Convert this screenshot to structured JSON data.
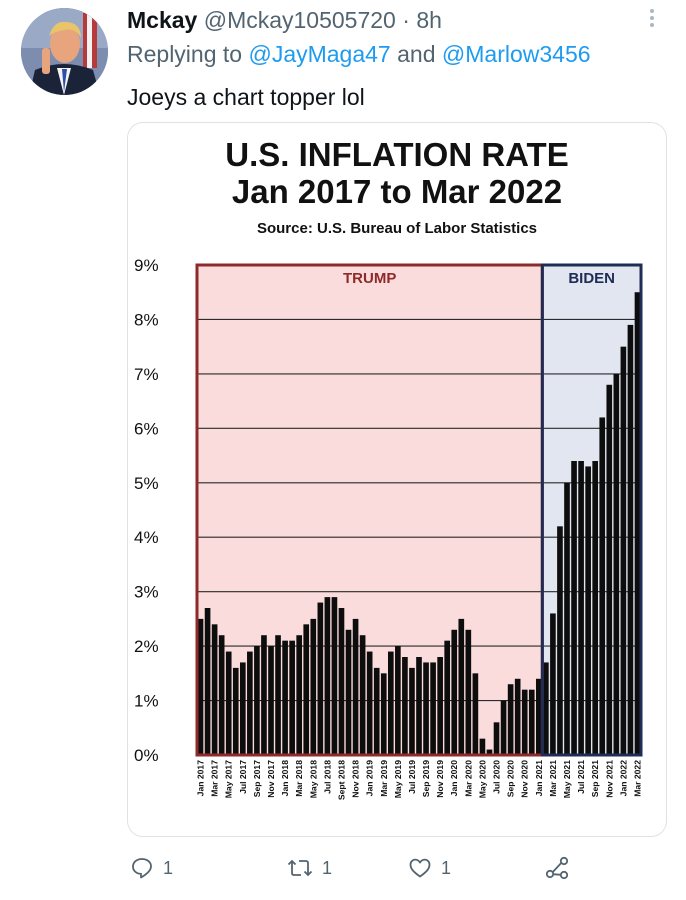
{
  "tweet": {
    "display_name": "Mckay",
    "handle": "@Mckay10505720",
    "separator": "·",
    "time": "8h",
    "reply_prefix": "Replying to",
    "mention_1": "@JayMaga47",
    "reply_and": "and",
    "mention_2": "@Marlow3456",
    "text": "Joeys a chart topper lol",
    "reply_count": "1",
    "retweet_count": "1",
    "like_count": "1",
    "colors": {
      "mention": "#1d9bf0",
      "secondary_text": "#536471"
    }
  },
  "chart_data": {
    "type": "bar",
    "title_line1": "U.S. INFLATION RATE",
    "title_line2": "Jan 2017 to Mar 2022",
    "subtitle": "Source: U.S. Bureau of Labor Statistics",
    "ylim": [
      0,
      9
    ],
    "yticks": [
      "0%",
      "1%",
      "2%",
      "3%",
      "4%",
      "5%",
      "6%",
      "7%",
      "8%",
      "9%"
    ],
    "x_tick_labels": [
      "Jan 2017",
      "Mar 2017",
      "May 2017",
      "Jul 2017",
      "Sep 2017",
      "Nov 2017",
      "Jan 2018",
      "Mar 2018",
      "May 2018",
      "Jul 2018",
      "Sept 2018",
      "Nov 2018",
      "Jan 2019",
      "Mar 2019",
      "May 2019",
      "Jul 2019",
      "Sep 2019",
      "Nov 2019",
      "Jan 2020",
      "Mar 2020",
      "May 2020",
      "Jul 2020",
      "Sep 2020",
      "Nov 2020",
      "Jan 2021",
      "Mar 2021",
      "May 2021",
      "Jul 2021",
      "Sep 2021",
      "Nov 2021",
      "Jan 2022",
      "Mar 2022"
    ],
    "values": [
      2.5,
      2.7,
      2.4,
      2.2,
      1.9,
      1.6,
      1.7,
      1.9,
      2.0,
      2.2,
      2.0,
      2.2,
      2.1,
      2.1,
      2.2,
      2.4,
      2.5,
      2.8,
      2.9,
      2.9,
      2.7,
      2.3,
      2.5,
      2.2,
      1.9,
      1.6,
      1.5,
      1.9,
      2.0,
      1.8,
      1.6,
      1.8,
      1.7,
      1.7,
      1.8,
      2.1,
      2.3,
      2.5,
      2.3,
      1.5,
      0.3,
      0.1,
      0.6,
      1.0,
      1.3,
      1.4,
      1.2,
      1.2,
      1.4,
      1.7,
      2.6,
      4.2,
      5.0,
      5.4,
      5.4,
      5.3,
      5.4,
      6.2,
      6.8,
      7.0,
      7.5,
      7.9,
      8.5
    ],
    "regions": [
      {
        "label": "TRUMP",
        "from_index": 0,
        "to_index": 48,
        "fill": "#fbdcdc",
        "border": "#8e2a2a"
      },
      {
        "label": "BIDEN",
        "from_index": 49,
        "to_index": 62,
        "fill": "#e2e6f1",
        "border": "#1f2d55"
      }
    ],
    "bar_color": "#0d0d0d",
    "grid": true
  }
}
